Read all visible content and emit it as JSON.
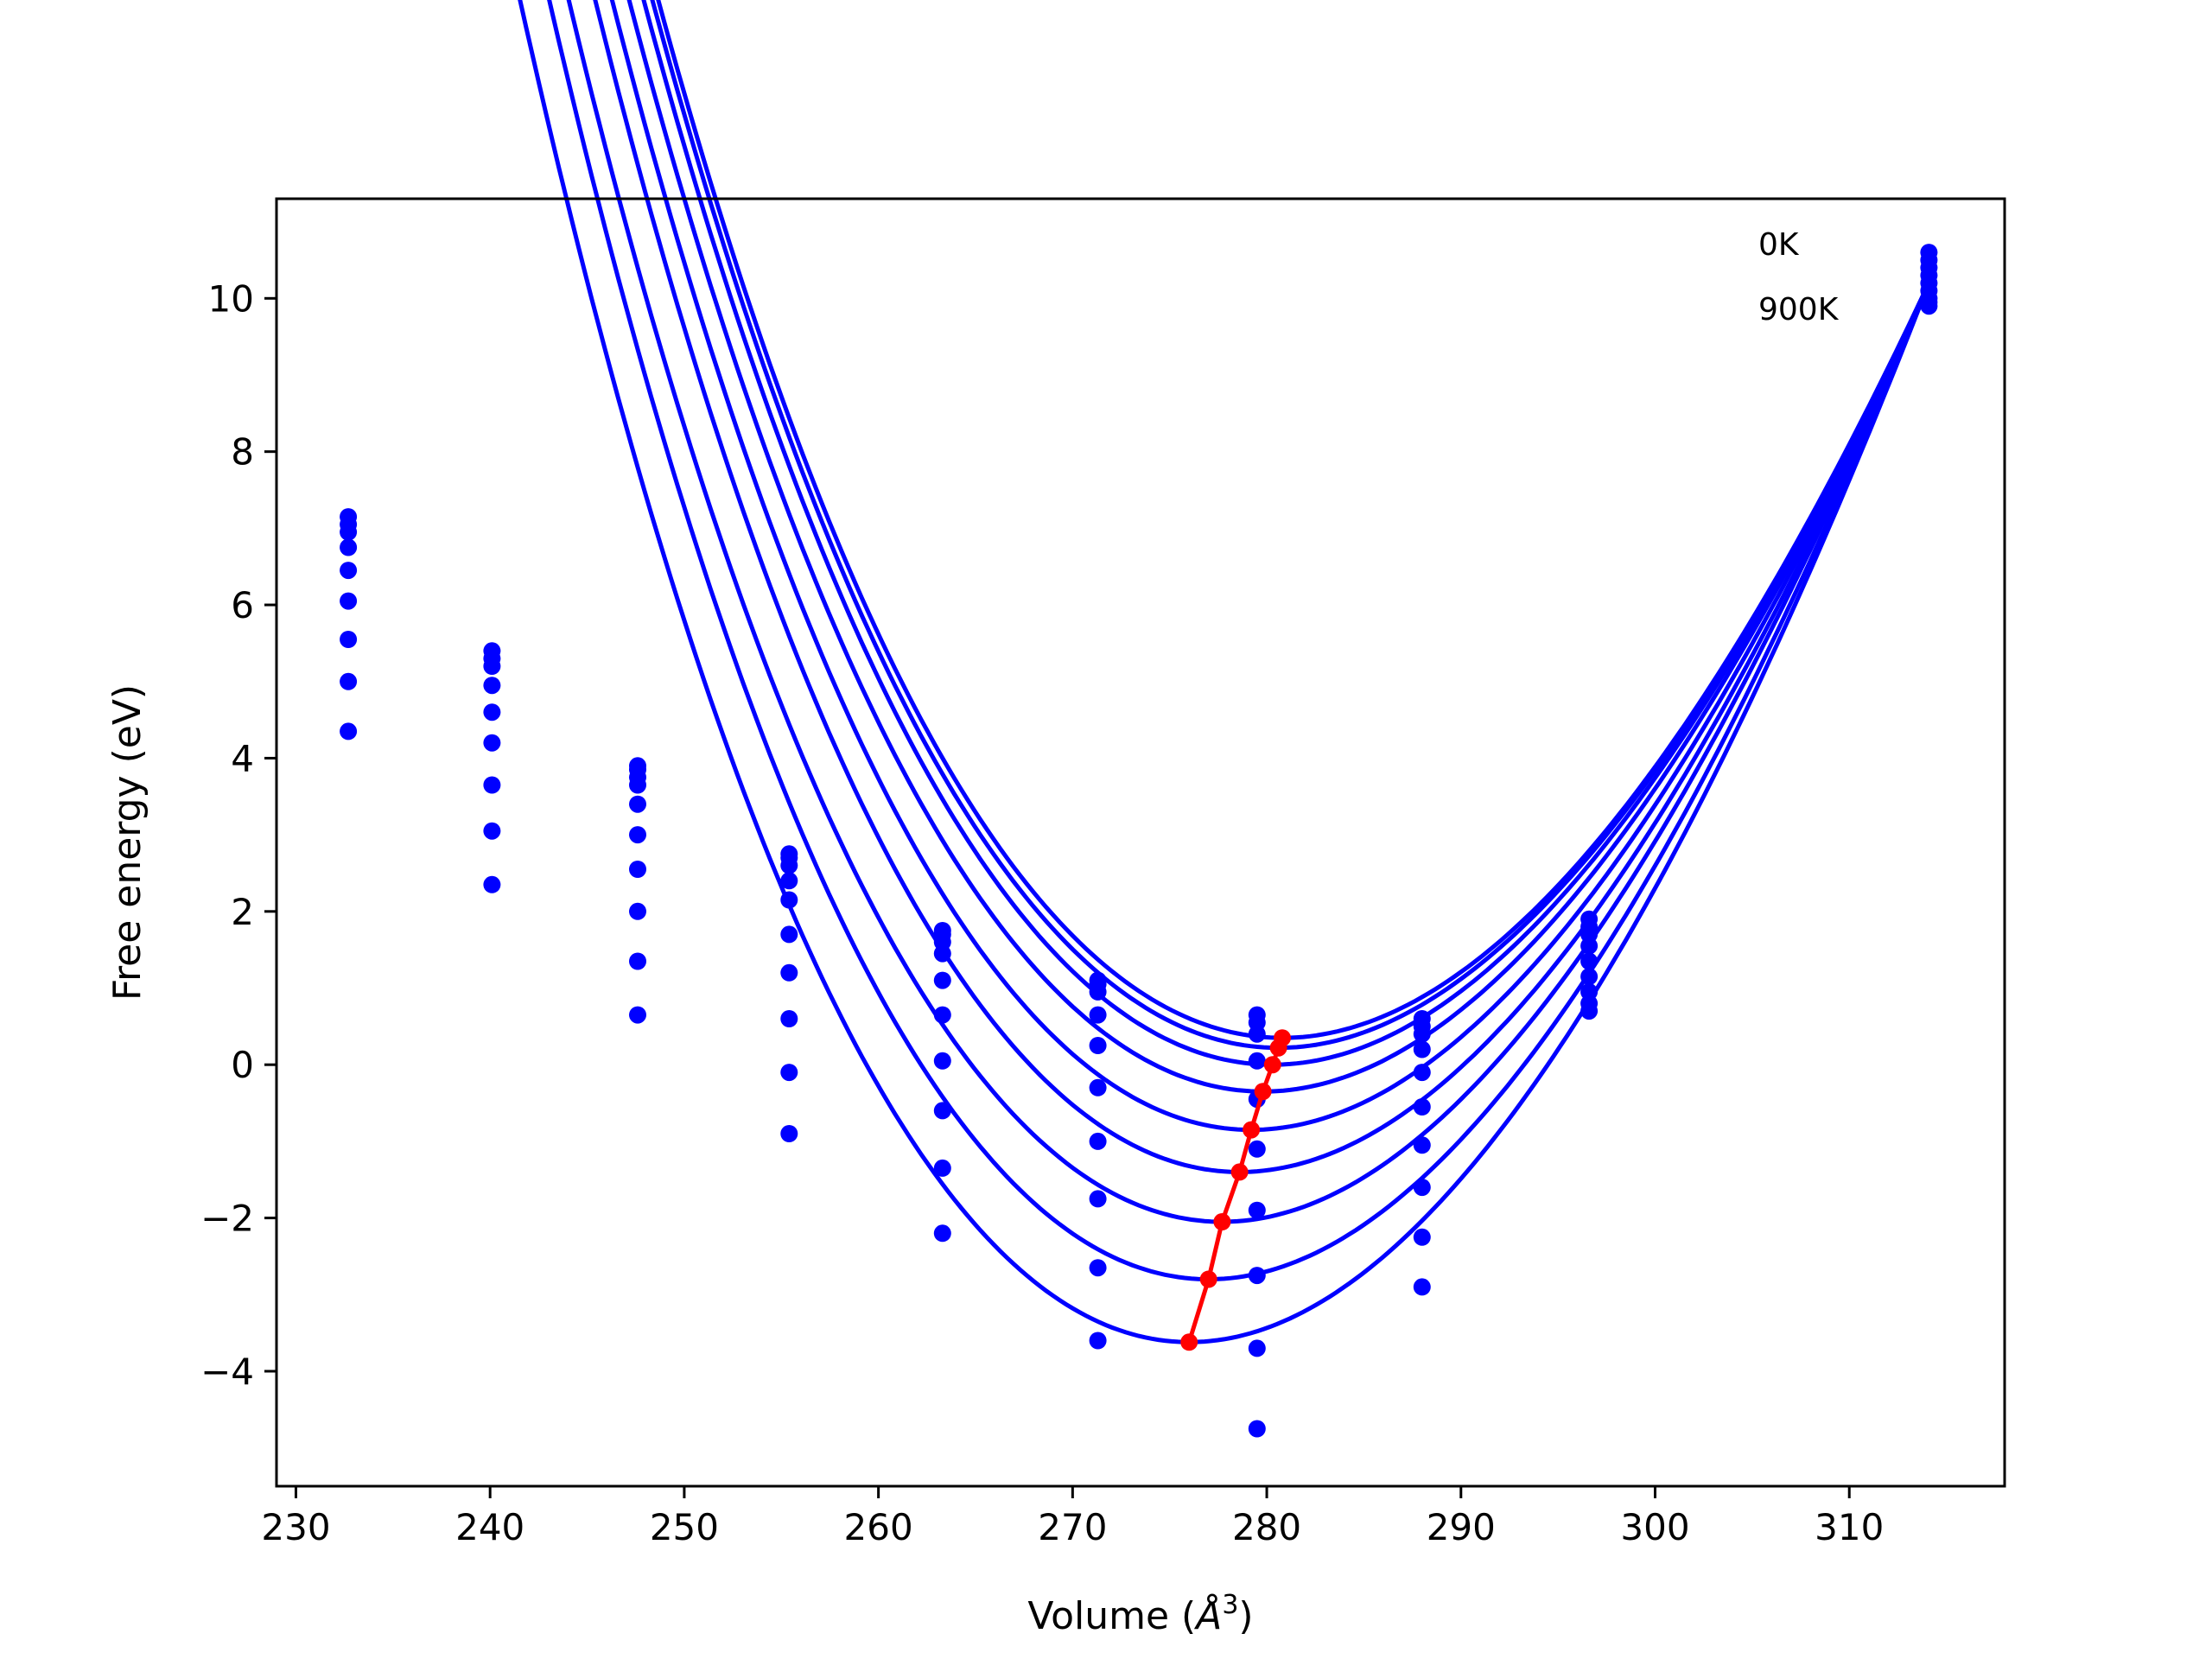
{
  "chart_data": {
    "type": "scatter",
    "title": "",
    "xlabel": "Volume (Å³)",
    "xlabel_text": "Volume (",
    "xlabel_unit": "Å",
    "xlabel_sup": "3",
    "xlabel_close": ")",
    "ylabel": "Free energy (eV)",
    "xlim": [
      229,
      318
    ],
    "ylim": [
      -5.5,
      11.3
    ],
    "xticks": [
      230,
      240,
      250,
      260,
      270,
      280,
      290,
      300,
      310
    ],
    "yticks": [
      -4,
      -2,
      0,
      2,
      4,
      6,
      8,
      10
    ],
    "ytick_labels": [
      "−4",
      "−2",
      "0",
      "2",
      "4",
      "6",
      "8",
      "10"
    ],
    "grid": false,
    "legend": {
      "placement": "top-right",
      "entries": [
        "0K",
        "900K"
      ]
    },
    "volumes": [
      232.7,
      240.1,
      247.6,
      255.4,
      263.3,
      271.3,
      279.5,
      288.0,
      296.6,
      314.1
    ],
    "series": [
      {
        "values": [
          7.15,
          5.4,
          3.9,
          2.75,
          1.75,
          1.1,
          0.65,
          0.6,
          1.9,
          10.6
        ]
      },
      {
        "values": [
          7.05,
          5.3,
          3.85,
          2.7,
          1.7,
          1.05,
          0.55,
          0.5,
          1.8,
          10.5
        ]
      },
      {
        "values": [
          6.95,
          5.2,
          3.75,
          2.6,
          1.6,
          0.95,
          0.4,
          0.4,
          1.7,
          10.4
        ]
      },
      {
        "values": [
          6.75,
          4.95,
          3.65,
          2.4,
          1.45,
          0.65,
          0.05,
          0.2,
          1.55,
          10.3
        ]
      },
      {
        "values": [
          6.45,
          4.6,
          3.4,
          2.15,
          1.1,
          0.25,
          -0.45,
          -0.1,
          1.35,
          10.2
        ]
      },
      {
        "values": [
          6.05,
          4.2,
          3.0,
          1.7,
          0.65,
          -0.3,
          -1.1,
          -0.55,
          1.15,
          10.1
        ]
      },
      {
        "values": [
          5.55,
          3.65,
          2.55,
          1.2,
          0.05,
          -1.0,
          -1.9,
          -1.05,
          0.95,
          10.0
        ]
      },
      {
        "values": [
          5.0,
          3.05,
          2.0,
          0.6,
          -0.6,
          -1.75,
          -2.75,
          -1.6,
          0.8,
          9.95
        ]
      },
      {
        "values": [
          4.35,
          2.35,
          1.35,
          -0.1,
          -1.35,
          -2.65,
          -3.7,
          -2.25,
          0.7,
          9.9
        ]
      },
      {
        "values": [
          null,
          null,
          0.65,
          -0.9,
          -2.2,
          -3.6,
          -4.75,
          -2.9,
          null,
          null
        ]
      }
    ],
    "fit_curves": [
      {
        "v0": 280.8,
        "e0": 0.35
      },
      {
        "v0": 280.6,
        "e0": 0.22
      },
      {
        "v0": 280.3,
        "e0": 0.0
      },
      {
        "v0": 279.8,
        "e0": -0.35
      },
      {
        "v0": 279.2,
        "e0": -0.85
      },
      {
        "v0": 278.6,
        "e0": -1.4
      },
      {
        "v0": 277.7,
        "e0": -2.05
      },
      {
        "v0": 277.0,
        "e0": -2.8
      },
      {
        "v0": 276.0,
        "e0": -3.62
      }
    ],
    "fit_volume_range": [
      232.7,
      314.1
    ],
    "minimum_line": {
      "v": [
        276.0,
        277.0,
        277.7,
        278.6,
        279.2,
        279.8,
        280.3,
        280.6,
        280.8
      ],
      "e": [
        -3.62,
        -2.8,
        -2.05,
        -1.4,
        -0.85,
        -0.35,
        0.0,
        0.22,
        0.35
      ]
    },
    "colors": {
      "series": "#0000ff",
      "minimum_line": "#ff0000",
      "axes": "#000000"
    }
  }
}
